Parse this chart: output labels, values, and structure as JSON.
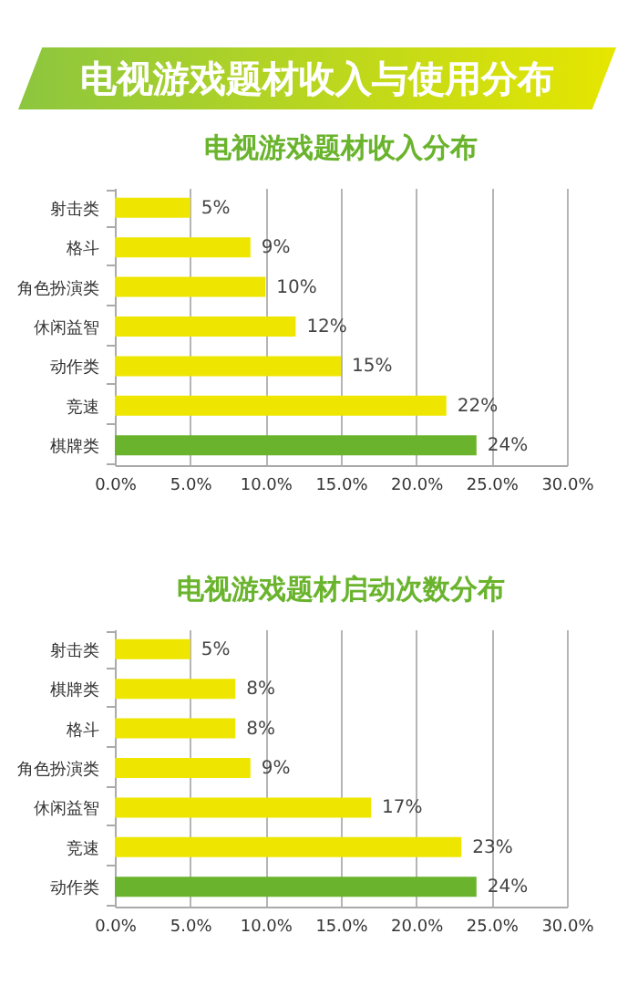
{
  "chart_data": [
    {
      "type": "bar",
      "orientation": "horizontal",
      "title": "电视游戏题材收入与使用分布",
      "subtitle": "电视游戏题材收入分布",
      "categories": [
        "射击类",
        "格斗",
        "角色扮演类",
        "休闲益智",
        "动作类",
        "竞速",
        "棋牌类"
      ],
      "values": [
        5,
        9,
        10,
        12,
        15,
        22,
        24
      ],
      "value_labels": [
        "5%",
        "9%",
        "10%",
        "12%",
        "15%",
        "22%",
        "24%"
      ],
      "colors": [
        "#eee600",
        "#eee600",
        "#eee600",
        "#eee600",
        "#eee600",
        "#eee600",
        "#6ab42d"
      ],
      "xlim": [
        0,
        30
      ],
      "xticks": [
        {
          "value": 0,
          "label": "0.0%"
        },
        {
          "value": 5,
          "label": "5.0%"
        },
        {
          "value": 10,
          "label": "10.0%"
        },
        {
          "value": 15,
          "label": "15.0%"
        },
        {
          "value": 20,
          "label": "20.0%"
        },
        {
          "value": 25,
          "label": "25.0%"
        },
        {
          "value": 30,
          "label": "30.0%"
        }
      ],
      "grid": "x"
    },
    {
      "type": "bar",
      "orientation": "horizontal",
      "title": "电视游戏题材启动次数分布",
      "categories": [
        "射击类",
        "棋牌类",
        "格斗",
        "角色扮演类",
        "休闲益智",
        "竞速",
        "动作类"
      ],
      "values": [
        5,
        8,
        8,
        9,
        17,
        23,
        24
      ],
      "value_labels": [
        "5%",
        "8%",
        "8%",
        "9%",
        "17%",
        "23%",
        "24%"
      ],
      "colors": [
        "#eee600",
        "#eee600",
        "#eee600",
        "#eee600",
        "#eee600",
        "#eee600",
        "#6ab42d"
      ],
      "xlim": [
        0,
        30
      ],
      "xticks": [
        {
          "value": 0,
          "label": "0.0%"
        },
        {
          "value": 5,
          "label": "5.0%"
        },
        {
          "value": 10,
          "label": "10.0%"
        },
        {
          "value": 15,
          "label": "15.0%"
        },
        {
          "value": 20,
          "label": "20.0%"
        },
        {
          "value": 25,
          "label": "25.0%"
        },
        {
          "value": 30,
          "label": "30.0%"
        }
      ],
      "grid": "x"
    }
  ]
}
